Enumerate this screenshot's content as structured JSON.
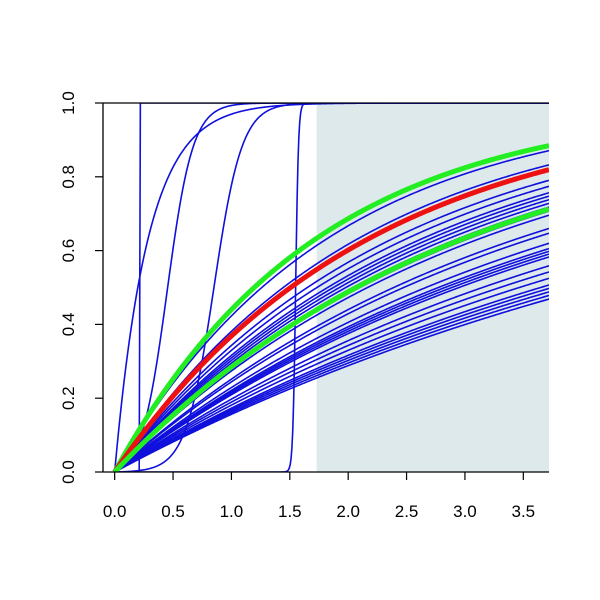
{
  "chart_data": {
    "type": "line",
    "title": "",
    "xlabel": "",
    "ylabel": "",
    "xlim": [
      -0.1,
      3.72
    ],
    "ylim": [
      0,
      1
    ],
    "x_ticks": [
      "0.0",
      "0.5",
      "1.0",
      "1.5",
      "2.0",
      "2.5",
      "3.0",
      "3.5"
    ],
    "y_ticks": [
      "0.0",
      "0.2",
      "0.4",
      "0.6",
      "0.8",
      "1.0"
    ],
    "grid": false,
    "shaded_region": {
      "x_from": 1.73,
      "x_to": 3.72,
      "color": "#dde9ea"
    },
    "colors": {
      "blue": "#1010dd",
      "red": "#ee1111",
      "green": "#22ee22"
    },
    "series": [
      {
        "curve": "exp",
        "rate": 0.55,
        "color": "blue"
      },
      {
        "curve": "exp",
        "rate": 0.48,
        "color": "blue"
      },
      {
        "curve": "exp",
        "rate": 0.42,
        "color": "blue"
      },
      {
        "curve": "exp",
        "rate": 0.4,
        "color": "blue"
      },
      {
        "curve": "exp",
        "rate": 0.38,
        "color": "blue"
      },
      {
        "curve": "exp",
        "rate": 0.37,
        "color": "blue"
      },
      {
        "curve": "exp",
        "rate": 0.36,
        "color": "blue"
      },
      {
        "curve": "exp",
        "rate": 0.35,
        "color": "blue"
      },
      {
        "curve": "exp",
        "rate": 0.34,
        "color": "blue"
      },
      {
        "curve": "exp",
        "rate": 0.33,
        "color": "blue"
      },
      {
        "curve": "exp",
        "rate": 0.32,
        "color": "blue"
      },
      {
        "curve": "exp",
        "rate": 0.29,
        "color": "blue"
      },
      {
        "curve": "exp",
        "rate": 0.28,
        "color": "blue"
      },
      {
        "curve": "exp",
        "rate": 0.26,
        "color": "blue"
      },
      {
        "curve": "exp",
        "rate": 0.25,
        "color": "blue"
      },
      {
        "curve": "exp",
        "rate": 0.245,
        "color": "blue"
      },
      {
        "curve": "exp",
        "rate": 0.24,
        "color": "blue"
      },
      {
        "curve": "exp",
        "rate": 0.235,
        "color": "blue"
      },
      {
        "curve": "exp",
        "rate": 0.22,
        "color": "blue"
      },
      {
        "curve": "exp",
        "rate": 0.21,
        "color": "blue"
      },
      {
        "curve": "exp",
        "rate": 0.2,
        "color": "blue"
      },
      {
        "curve": "exp",
        "rate": 0.19,
        "color": "blue"
      },
      {
        "curve": "exp",
        "rate": 0.185,
        "color": "blue"
      },
      {
        "curve": "exp",
        "rate": 0.18,
        "color": "blue"
      },
      {
        "curve": "exp",
        "rate": 0.175,
        "color": "blue"
      },
      {
        "curve": "exp",
        "rate": 0.17,
        "color": "blue"
      },
      {
        "curve": "exp",
        "rate": 3.5,
        "color": "blue"
      },
      {
        "curve": "logistic",
        "center": 0.45,
        "scale": 0.11,
        "color": "blue"
      },
      {
        "curve": "logistic",
        "center": 0.85,
        "scale": 0.12,
        "color": "blue"
      },
      {
        "curve": "step",
        "at": 0.22,
        "color": "blue"
      },
      {
        "curve": "logistic",
        "center": 1.55,
        "scale": 0.012,
        "color": "blue"
      },
      {
        "curve": "exp",
        "rate": 0.58,
        "color": "green",
        "width": 5
      },
      {
        "curve": "exp",
        "rate": 0.46,
        "color": "red",
        "width": 5
      },
      {
        "curve": "exp",
        "rate": 0.335,
        "color": "green",
        "width": 5
      }
    ]
  }
}
